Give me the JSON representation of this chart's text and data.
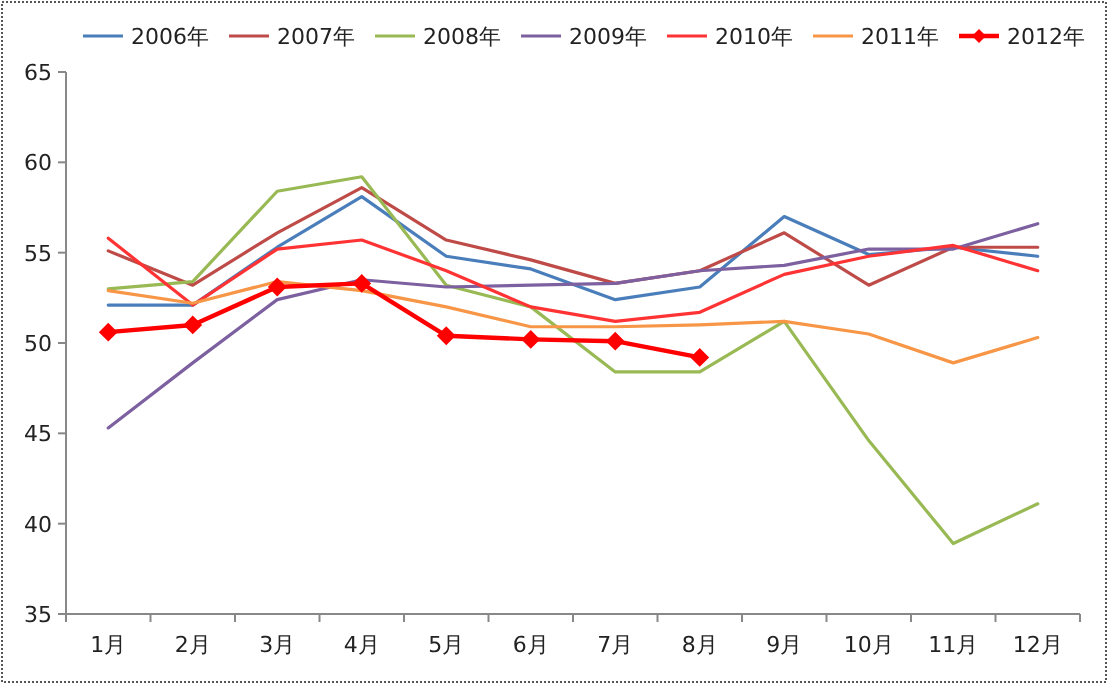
{
  "chart_data": {
    "type": "line",
    "categories": [
      "1月",
      "2月",
      "3月",
      "4月",
      "5月",
      "6月",
      "7月",
      "8月",
      "9月",
      "10月",
      "11月",
      "12月"
    ],
    "ylim": [
      35,
      65
    ],
    "yticks": [
      35,
      40,
      45,
      50,
      55,
      60,
      65
    ],
    "grid": false,
    "legend": "top",
    "marker": "none",
    "series": [
      {
        "name": "2006年",
        "color": "#4a7ebb",
        "values": [
          52.1,
          52.1,
          55.3,
          58.1,
          54.8,
          54.1,
          52.4,
          53.1,
          57.0,
          54.9,
          55.3,
          54.8
        ]
      },
      {
        "name": "2007年",
        "color": "#be4b48",
        "values": [
          55.1,
          53.2,
          56.1,
          58.6,
          55.7,
          54.6,
          53.3,
          54.0,
          56.1,
          53.2,
          55.3,
          55.3
        ]
      },
      {
        "name": "2008年",
        "color": "#98b954",
        "values": [
          53.0,
          53.4,
          58.4,
          59.2,
          53.2,
          52.0,
          48.4,
          48.4,
          51.2,
          44.6,
          38.9,
          41.1
        ]
      },
      {
        "name": "2009年",
        "color": "#7d60a0",
        "values": [
          45.3,
          48.9,
          52.4,
          53.5,
          53.1,
          53.2,
          53.3,
          54.0,
          54.3,
          55.2,
          55.2,
          56.6
        ]
      },
      {
        "name": "2010年",
        "color": "#ff3333",
        "values": [
          55.8,
          52.1,
          55.2,
          55.7,
          54.0,
          52.0,
          51.2,
          51.7,
          53.8,
          54.8,
          55.4,
          54.0
        ]
      },
      {
        "name": "2011年",
        "color": "#f79646",
        "values": [
          52.9,
          52.2,
          53.4,
          52.9,
          52.0,
          50.9,
          50.9,
          51.0,
          51.2,
          50.5,
          48.9,
          50.3
        ]
      },
      {
        "name": "2012年",
        "color": "#ff0000",
        "marker": "diamond",
        "values": [
          50.6,
          51.0,
          53.1,
          53.3,
          50.4,
          50.2,
          50.1,
          49.2,
          null,
          null,
          null,
          null
        ]
      }
    ]
  }
}
